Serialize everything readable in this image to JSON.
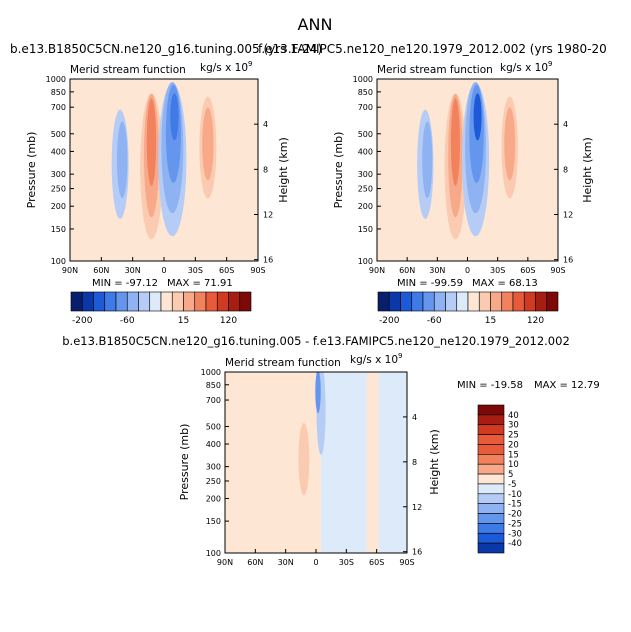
{
  "page_title": "ANN",
  "colors": {
    "blue_scale": [
      "#08206b",
      "#0a38a8",
      "#1d5ad8",
      "#3f7ae6",
      "#6596ee",
      "#8eb2f2",
      "#b5cdf6",
      "#dceaf9"
    ],
    "red_scale": [
      "#fde6d4",
      "#fbcbb1",
      "#f7a98a",
      "#f2825e",
      "#e85b3a",
      "#cf3a20",
      "#a71d12",
      "#7c0808"
    ]
  },
  "chart_data": [
    {
      "type": "heatmap",
      "title": "b.e13.B1850C5CN.ne120_g16.tuning.005 (yrs 1-24)",
      "subtitle": "Merid stream function",
      "units": "kg/s x 10",
      "units_exp": "9",
      "xlabel": "",
      "ylabel": "Pressure (mb)",
      "ylabel_right": "Height (km)",
      "x_ticks": [
        "90N",
        "60N",
        "30N",
        "0",
        "30S",
        "60S",
        "90S"
      ],
      "y_ticks": [
        "100",
        "150",
        "200",
        "250",
        "300",
        "400",
        "500",
        "700",
        "850",
        "1000"
      ],
      "y_right_ticks": [
        "16",
        "12",
        "8",
        "4"
      ],
      "xlim": [
        90,
        -90
      ],
      "ylim": [
        1000,
        100
      ],
      "min_label": "MIN = -97.12",
      "max_label": "MAX =  71.91",
      "min": -97.12,
      "max": 71.91,
      "levels": [
        -200,
        -160,
        -120,
        -80,
        -60,
        -40,
        -20,
        -10,
        -5,
        5,
        15,
        30,
        60,
        90,
        120,
        160,
        200
      ],
      "colorbar_ticks": [
        "-200",
        "-60",
        "15",
        "120"
      ]
    },
    {
      "type": "heatmap",
      "title": "f.e13.FAMIPC5.ne120_ne120.1979_2012.002 (yrs 1980-20",
      "subtitle": "Merid stream function",
      "units": "kg/s x 10",
      "units_exp": "9",
      "xlabel": "",
      "ylabel": "Pressure (mb)",
      "ylabel_right": "Height (km)",
      "x_ticks": [
        "90N",
        "60N",
        "30N",
        "0",
        "30S",
        "60S",
        "90S"
      ],
      "y_ticks": [
        "100",
        "150",
        "200",
        "250",
        "300",
        "400",
        "500",
        "700",
        "850",
        "1000"
      ],
      "y_right_ticks": [
        "16",
        "12",
        "8",
        "4"
      ],
      "xlim": [
        90,
        -90
      ],
      "ylim": [
        1000,
        100
      ],
      "min_label": "MIN = -99.59",
      "max_label": "MAX =  68.13",
      "min": -99.59,
      "max": 68.13,
      "levels": [
        -200,
        -160,
        -120,
        -80,
        -60,
        -40,
        -20,
        -10,
        -5,
        5,
        15,
        30,
        60,
        90,
        120,
        160,
        200
      ],
      "colorbar_ticks": [
        "-200",
        "-60",
        "15",
        "120"
      ]
    },
    {
      "type": "heatmap",
      "title": "b.e13.B1850C5CN.ne120_g16.tuning.005 - f.e13.FAMIPC5.ne120_ne120.1979_2012.002",
      "subtitle": "Merid stream function",
      "units": "kg/s x 10",
      "units_exp": "9",
      "xlabel": "",
      "ylabel": "Pressure (mb)",
      "ylabel_right": "Height (km)",
      "x_ticks": [
        "90N",
        "60N",
        "30N",
        "0",
        "30S",
        "60S",
        "90S"
      ],
      "y_ticks": [
        "100",
        "150",
        "200",
        "250",
        "300",
        "400",
        "500",
        "700",
        "850",
        "1000"
      ],
      "y_right_ticks": [
        "16",
        "12",
        "8",
        "4"
      ],
      "xlim": [
        90,
        -90
      ],
      "ylim": [
        1000,
        100
      ],
      "min_label": "MIN = -19.58",
      "max_label": "MAX =  12.79",
      "min": -19.58,
      "max": 12.79,
      "levels": [
        -40,
        -30,
        -25,
        -20,
        -15,
        -10,
        -5,
        5,
        10,
        15,
        20,
        25,
        30,
        40
      ],
      "legend_labels": [
        "40",
        "30",
        "25",
        "20",
        "15",
        "10",
        "5",
        "-5",
        "-10",
        "-15",
        "-20",
        "-25",
        "-30",
        "-40"
      ]
    }
  ]
}
